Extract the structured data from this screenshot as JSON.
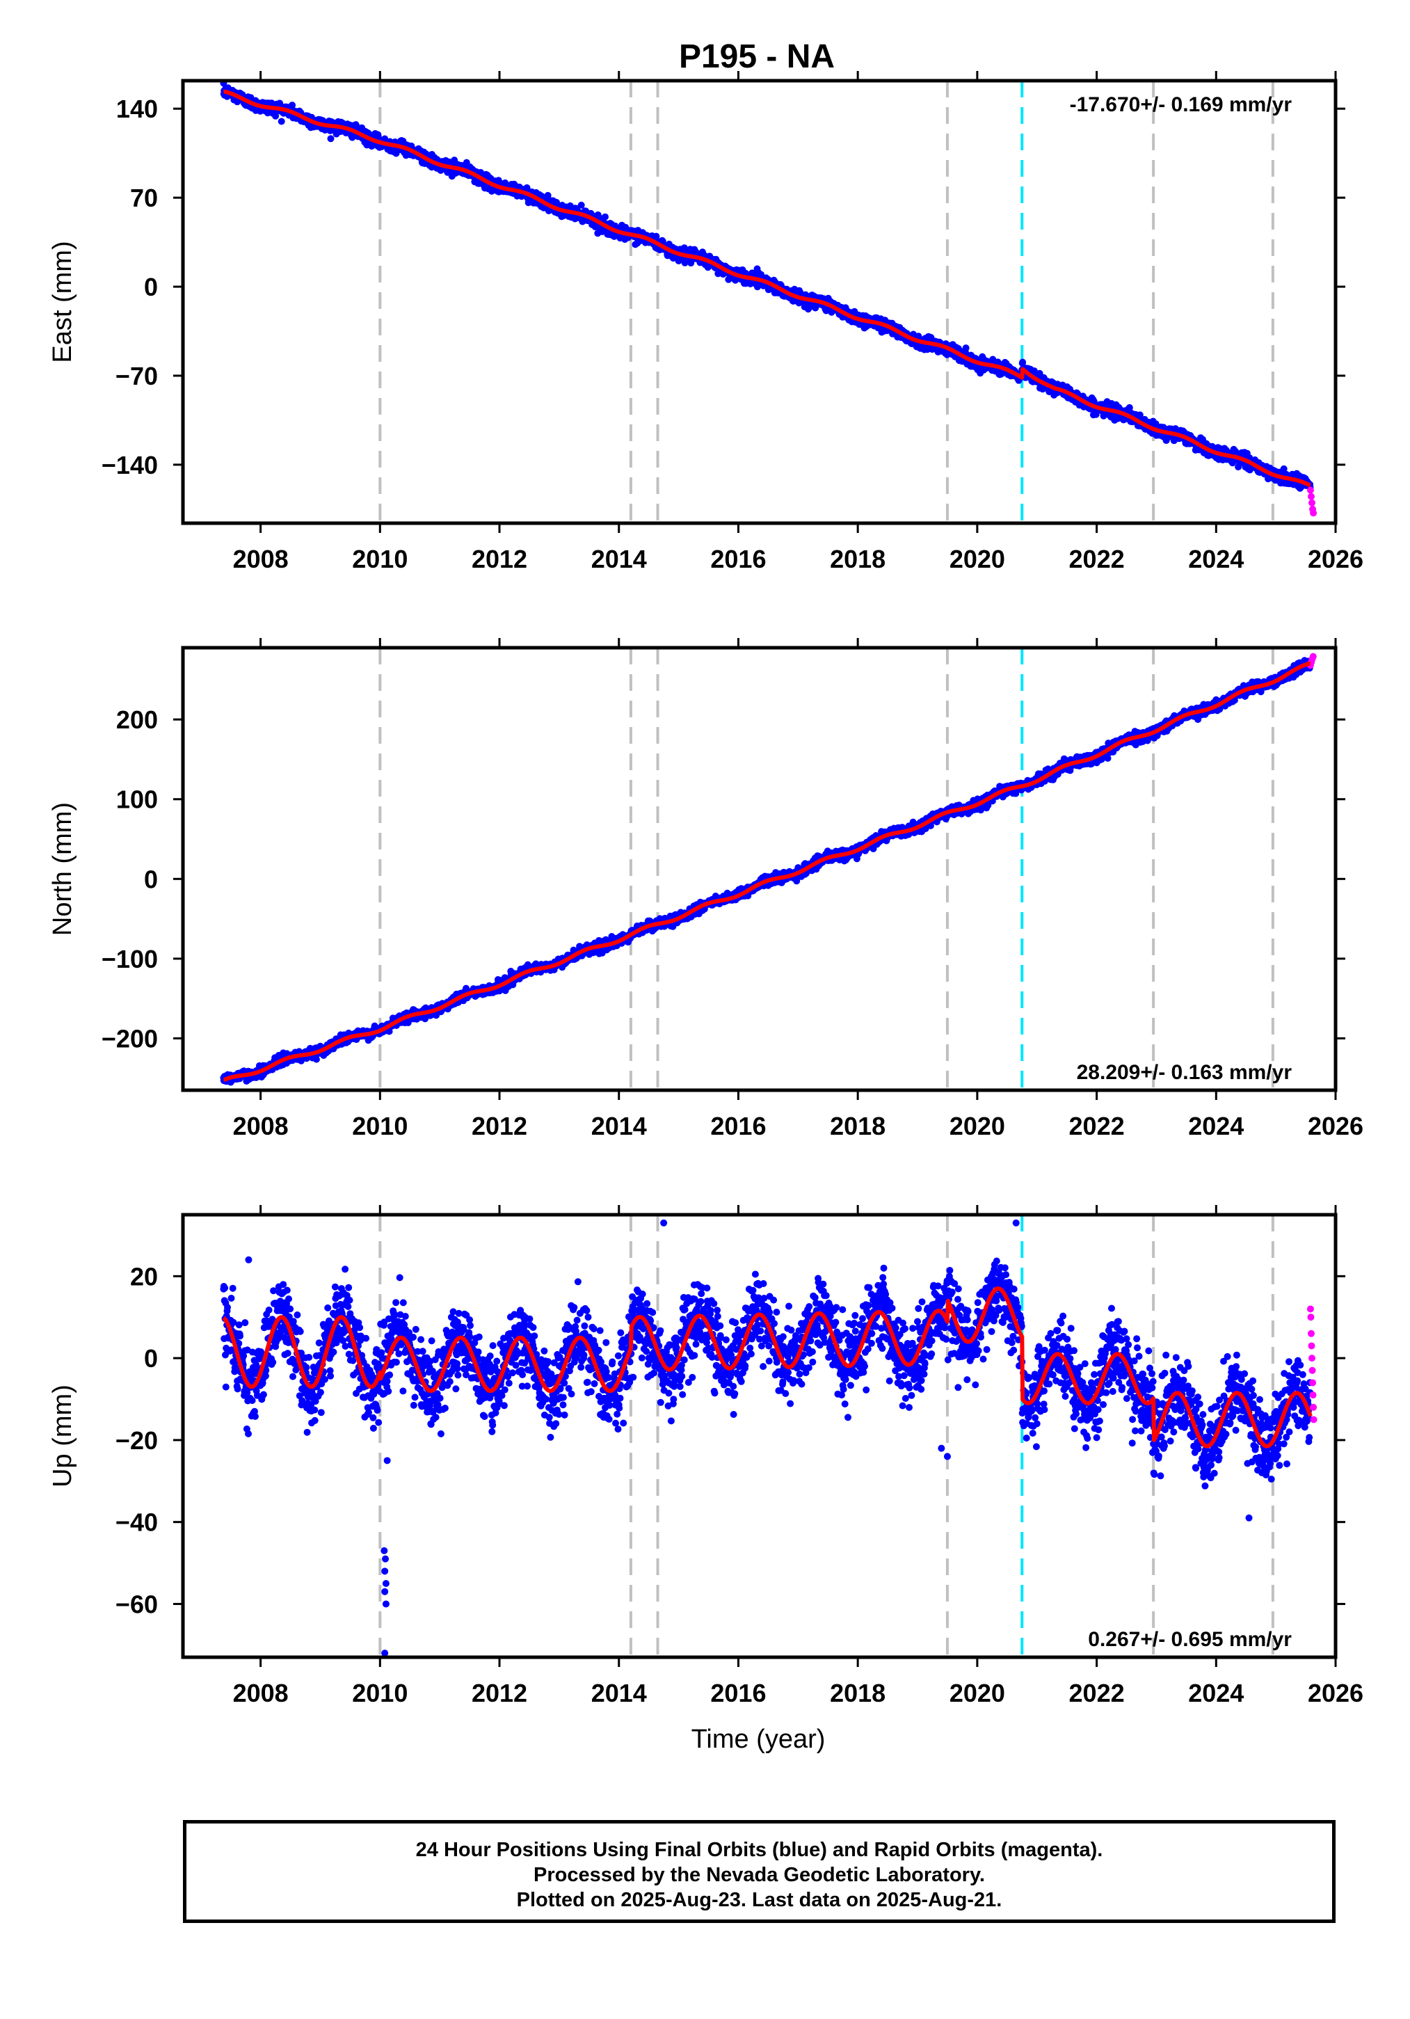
{
  "title": "P195 - NA",
  "xlabel": "Time (year)",
  "footer": {
    "line1": "24 Hour Positions Using Final Orbits (blue) and Rapid Orbits (magenta).",
    "line2": "Processed by the Nevada Geodetic Laboratory.",
    "line3": "Plotted on 2025-Aug-23. Last data on 2025-Aug-21."
  },
  "colors": {
    "final_orbit": "#0000ff",
    "rapid_orbit": "#ff00ff",
    "model": "#ff0000",
    "break_gray": "#c0c0c0",
    "break_cyan": "#00e5ff"
  },
  "chart_data": [
    {
      "type": "scatter",
      "panel": "east",
      "ylabel": "East (mm)",
      "rate_label": "-17.670+/- 0.169 mm/yr",
      "rate_position": "top-right",
      "xlim": [
        2006.7,
        2026.0
      ],
      "ylim": [
        -186,
        162
      ],
      "xticks": [
        2008,
        2010,
        2012,
        2014,
        2016,
        2018,
        2020,
        2022,
        2024,
        2026
      ],
      "yticks": [
        140,
        70,
        0,
        -70,
        -140
      ],
      "ytick_labels": [
        "140",
        "70",
        "0",
        "−70",
        "−140"
      ],
      "start": 2007.38,
      "end": 2025.64,
      "rapid_start": 2025.58,
      "trend": {
        "t": [
          2007.4,
          2010.0,
          2014.2,
          2020.75,
          2025.55
        ],
        "y": [
          152,
          115,
          41,
          -71,
          -157
        ]
      },
      "model_offsets": {
        "2020.75": 7,
        "2025.55": 0
      },
      "seasonal_amplitude": 1.5,
      "scatter_sd": 2.4,
      "rapid_values": [
        -160,
        -165,
        -170,
        -175,
        -178
      ]
    },
    {
      "type": "scatter",
      "panel": "north",
      "ylabel": "North (mm)",
      "rate_label": "28.209+/- 0.163 mm/yr",
      "rate_position": "bottom-right",
      "xlim": [
        2006.7,
        2026.0
      ],
      "ylim": [
        -265,
        290
      ],
      "xticks": [
        2008,
        2010,
        2012,
        2014,
        2016,
        2018,
        2020,
        2022,
        2024,
        2026
      ],
      "yticks": [
        200,
        100,
        0,
        -100,
        -200
      ],
      "ytick_labels": [
        "200",
        "100",
        "0",
        "−100",
        "−200"
      ],
      "start": 2007.38,
      "end": 2025.64,
      "rapid_start": 2025.58,
      "trend": {
        "t": [
          2007.4,
          2010.0,
          2014.2,
          2020.75,
          2025.55
        ],
        "y": [
          -254,
          -188,
          -70,
          117,
          268
        ]
      },
      "seasonal_amplitude": 2.5,
      "scatter_sd": 3.0,
      "rapid_values": [
        268,
        272,
        276,
        279
      ]
    },
    {
      "type": "scatter",
      "panel": "up",
      "ylabel": "Up (mm)",
      "rate_label": "0.267+/- 0.695 mm/yr",
      "rate_position": "bottom-right",
      "xlim": [
        2006.7,
        2026.0
      ],
      "ylim": [
        -73,
        35
      ],
      "xticks": [
        2008,
        2010,
        2012,
        2014,
        2016,
        2018,
        2020,
        2022,
        2024,
        2026
      ],
      "yticks": [
        20,
        0,
        -20,
        -40,
        -60
      ],
      "ytick_labels": [
        "20",
        "0",
        "−20",
        "−40",
        "−60"
      ],
      "start": 2007.38,
      "end": 2025.64,
      "rapid_start": 2025.58,
      "segments": [
        {
          "from": 2007.38,
          "to": 2010.0,
          "mean": 1.5,
          "amp": 8.5,
          "trend": 0.0
        },
        {
          "from": 2010.0,
          "to": 2014.2,
          "mean": -1.5,
          "amp": 6.5,
          "trend": 0.0
        },
        {
          "from": 2014.2,
          "to": 2019.5,
          "mean": 3.5,
          "amp": 6.5,
          "trend": 0.3
        },
        {
          "from": 2019.5,
          "to": 2020.75,
          "mean": 10.5,
          "amp": 6.5,
          "trend": 0.0
        },
        {
          "from": 2020.75,
          "to": 2022.95,
          "mean": -5,
          "amp": 6.0,
          "trend": 0.0
        },
        {
          "from": 2022.95,
          "to": 2025.65,
          "mean": -15,
          "amp": 6.5,
          "trend": 0.0
        }
      ],
      "scatter_sd": 4.5,
      "outliers": [
        {
          "t": 2010.07,
          "y": -47
        },
        {
          "t": 2010.09,
          "y": -49
        },
        {
          "t": 2010.08,
          "y": -52
        },
        {
          "t": 2010.1,
          "y": -55
        },
        {
          "t": 2010.08,
          "y": -57
        },
        {
          "t": 2010.1,
          "y": -60
        },
        {
          "t": 2010.12,
          "y": -25
        },
        {
          "t": 2010.08,
          "y": -72
        },
        {
          "t": 2014.75,
          "y": 33
        },
        {
          "t": 2020.65,
          "y": 33
        },
        {
          "t": 2019.4,
          "y": -22
        },
        {
          "t": 2019.5,
          "y": -24
        },
        {
          "t": 2024.55,
          "y": -39
        },
        {
          "t": 2007.8,
          "y": 24
        }
      ],
      "rapid_values": [
        12,
        10,
        6,
        3,
        0,
        -3,
        -6,
        -9,
        -12,
        -15
      ]
    }
  ],
  "breaks": {
    "gray": [
      2010.0,
      2014.2,
      2014.65,
      2019.5,
      2022.95,
      2024.95
    ],
    "cyan": [
      2020.75
    ]
  }
}
